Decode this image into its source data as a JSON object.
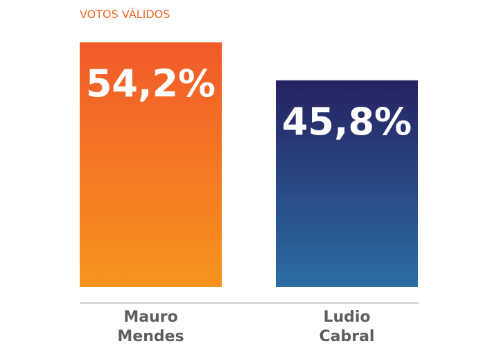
{
  "chart_data": {
    "type": "bar",
    "title": "VOTOS VÁLIDOS",
    "categories": [
      "Mauro Mendes",
      "Ludio Cabral"
    ],
    "values": [
      54.2,
      45.8
    ],
    "value_labels": [
      "54,2%",
      "45,8%"
    ],
    "colors": [
      [
        "#f15a29",
        "#f7941e"
      ],
      [
        "#262262",
        "#2c6ea4"
      ]
    ]
  }
}
